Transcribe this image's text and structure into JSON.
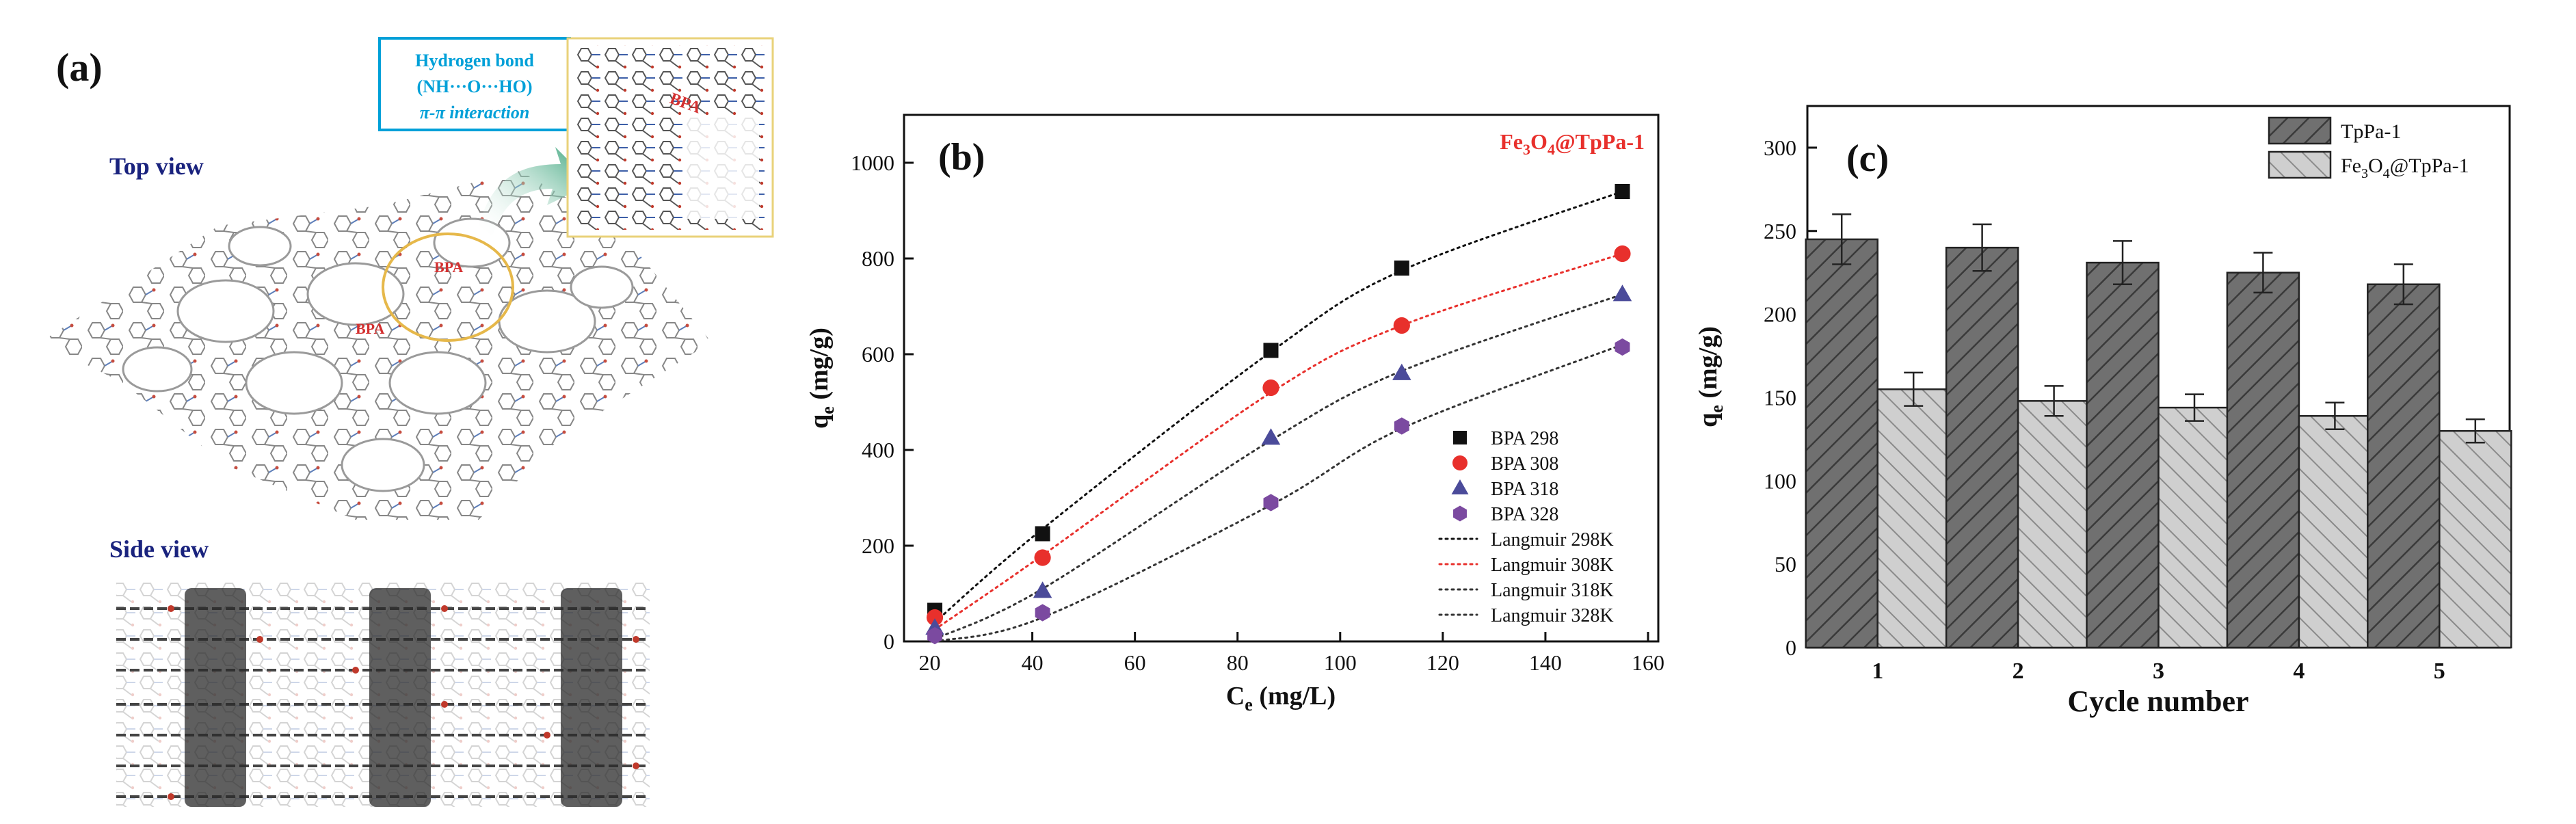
{
  "panel_a": {
    "label": "(a)",
    "top_view": "Top view",
    "side_view": "Side view",
    "callout_line1": "Hydrogen bond",
    "callout_line2": "(NH···O···HO)",
    "callout_line3": "π-π interaction",
    "bpa_1": "BPA",
    "bpa_2": "BPA",
    "bpa_3": "BPA",
    "colors": {
      "label_blue": "#1a237e",
      "callout_cyan": "#00a0d8",
      "bpa_red": "#d32f2f",
      "ring": "#e6b84a",
      "arrow": "#2e9e73"
    }
  },
  "chart_data": [
    {
      "type": "scatter",
      "panel_label": "(b)",
      "title": "Fe3O4@TpPa-1",
      "title_parts": {
        "a": "Fe",
        "b": "3",
        "c": "O",
        "d": "4",
        "e": "@TpPa-1"
      },
      "xlabel": "Ce (mg/L)",
      "xlabel_parts": {
        "main": "C",
        "sub": "e",
        "unit": " (mg/L)"
      },
      "ylabel": "qe (mg/g)",
      "ylabel_parts": {
        "main": "q",
        "sub": "e",
        "unit": " (mg/g)"
      },
      "xlim": [
        15,
        162
      ],
      "ylim": [
        0,
        1100
      ],
      "xticks": [
        20,
        40,
        60,
        80,
        100,
        120,
        140,
        160
      ],
      "yticks": [
        0,
        200,
        400,
        600,
        800,
        1000
      ],
      "x": [
        21,
        42,
        86.5,
        112,
        155
      ],
      "series": [
        {
          "name": "BPA 298",
          "marker": "square",
          "color": "#111111",
          "values": [
            65,
            225,
            608,
            780,
            940
          ]
        },
        {
          "name": "BPA 308",
          "marker": "circle",
          "color": "#e8302c",
          "values": [
            50,
            175,
            530,
            660,
            810
          ]
        },
        {
          "name": "BPA 318",
          "marker": "triangle",
          "color": "#4b4b9a",
          "values": [
            28,
            105,
            425,
            560,
            725
          ]
        },
        {
          "name": "BPA 328",
          "marker": "hexagon",
          "color": "#7b4aa0",
          "values": [
            12,
            60,
            290,
            450,
            615
          ]
        }
      ],
      "fits": [
        {
          "name": "Langmuir 298K",
          "color": "#111111",
          "x": [
            21,
            42,
            86.5,
            112,
            155
          ],
          "values": [
            40,
            235,
            605,
            775,
            940
          ]
        },
        {
          "name": "Langmuir 308K",
          "color": "#e8302c",
          "x": [
            21,
            42,
            86.5,
            112,
            155
          ],
          "values": [
            25,
            180,
            520,
            660,
            810
          ]
        },
        {
          "name": "Langmuir 318K",
          "color": "#333333",
          "x": [
            21,
            42,
            86.5,
            112,
            155
          ],
          "values": [
            5,
            110,
            420,
            565,
            725
          ]
        },
        {
          "name": "Langmuir 328K",
          "color": "#333333",
          "x": [
            21,
            42,
            86.5,
            112,
            155
          ],
          "values": [
            0,
            50,
            285,
            445,
            620
          ]
        }
      ],
      "legend_position": "lower-right"
    },
    {
      "type": "bar",
      "panel_label": "(c)",
      "xlabel": "Cycle number",
      "ylabel": "qe (mg/g)",
      "ylabel_parts": {
        "main": "q",
        "sub": "e",
        "unit": " (mg/g)"
      },
      "ylim": [
        0,
        325
      ],
      "yticks": [
        0,
        50,
        100,
        150,
        200,
        250,
        300
      ],
      "categories": [
        "1",
        "2",
        "3",
        "4",
        "5"
      ],
      "series": [
        {
          "name": "TpPa-1",
          "color": "#6f6f6f",
          "values": [
            245,
            240,
            231,
            225,
            218
          ],
          "errors": [
            15,
            14,
            13,
            12,
            12
          ]
        },
        {
          "name": "Fe3O4@TpPa-1",
          "name_parts": {
            "a": "Fe",
            "b": "3",
            "c": "O",
            "d": "4",
            "e": "@TpPa-1"
          },
          "color": "#c9c9c9",
          "values": [
            155,
            148,
            144,
            139,
            130
          ],
          "errors": [
            10,
            9,
            8,
            8,
            7
          ]
        }
      ],
      "legend_position": "top-right"
    }
  ]
}
